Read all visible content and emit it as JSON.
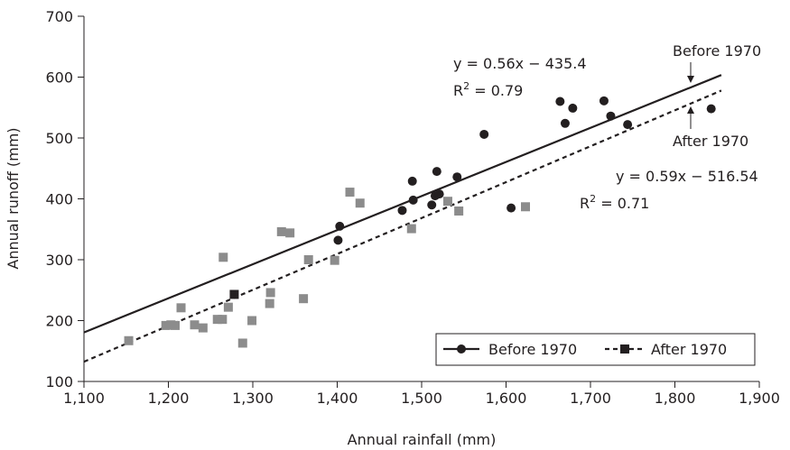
{
  "chart_data": {
    "type": "scatter",
    "xlabel": "Annual rainfall (mm)",
    "ylabel": "Annual runoff (mm)",
    "xlim": [
      1100,
      1900
    ],
    "ylim": [
      100,
      700
    ],
    "x_ticks": [
      1100,
      1200,
      1300,
      1400,
      1500,
      1600,
      1700,
      1800,
      1900
    ],
    "x_tick_labels": [
      "1,100",
      "1,200",
      "1,300",
      "1,400",
      "1,500",
      "1,600",
      "1,700",
      "1,800",
      "1,900"
    ],
    "y_ticks": [
      100,
      200,
      300,
      400,
      500,
      600,
      700
    ],
    "y_tick_labels": [
      "100",
      "200",
      "300",
      "400",
      "500",
      "600",
      "700"
    ],
    "grid": false,
    "legend_position": "bottom-right",
    "series": [
      {
        "name": "Before 1970",
        "marker": "circle",
        "line_style": "solid",
        "color": "#231f20",
        "trend": {
          "slope": 0.56,
          "intercept": -435.4,
          "x_range": [
            1100,
            1855
          ]
        },
        "points": [
          [
            1401,
            332
          ],
          [
            1403,
            355
          ],
          [
            1477,
            381
          ],
          [
            1489,
            429
          ],
          [
            1490,
            398
          ],
          [
            1512,
            390
          ],
          [
            1516,
            405
          ],
          [
            1518,
            445
          ],
          [
            1521,
            408
          ],
          [
            1542,
            436
          ],
          [
            1574,
            506
          ],
          [
            1606,
            385
          ],
          [
            1664,
            560
          ],
          [
            1670,
            524
          ],
          [
            1679,
            549
          ],
          [
            1716,
            561
          ],
          [
            1724,
            536
          ],
          [
            1744,
            522
          ],
          [
            1843,
            548
          ]
        ]
      },
      {
        "name": "After 1970",
        "marker": "square",
        "line_style": "dashed",
        "color": "#8c8c8c",
        "highlight_color": "#231f20",
        "trend": {
          "slope": 0.59,
          "intercept": -516.54,
          "x_range": [
            1100,
            1855
          ]
        },
        "points": [
          [
            1153,
            167
          ],
          [
            1197,
            192
          ],
          [
            1203,
            193
          ],
          [
            1208,
            192
          ],
          [
            1215,
            221
          ],
          [
            1231,
            193
          ],
          [
            1241,
            188
          ],
          [
            1258,
            202
          ],
          [
            1264,
            202
          ],
          [
            1265,
            304
          ],
          [
            1271,
            222
          ],
          [
            1278,
            243
          ],
          [
            1288,
            163
          ],
          [
            1299,
            200
          ],
          [
            1320,
            228
          ],
          [
            1321,
            246
          ],
          [
            1334,
            346
          ],
          [
            1344,
            344
          ],
          [
            1360,
            236
          ],
          [
            1366,
            300
          ],
          [
            1397,
            299
          ],
          [
            1415,
            411
          ],
          [
            1427,
            393
          ],
          [
            1488,
            351
          ],
          [
            1531,
            396
          ],
          [
            1544,
            380
          ],
          [
            1623,
            387
          ]
        ],
        "highlight_point_index": 11
      }
    ],
    "annotations": {
      "before_equation": "y = 0.56x − 435.4",
      "before_r2_prefix": "R",
      "before_r2_exp": "2",
      "before_r2_value": " = 0.79",
      "after_equation": "y = 0.59x − 516.54",
      "after_r2_prefix": "R",
      "after_r2_exp": "2",
      "after_r2_value": " = 0.71",
      "before_label": "Before 1970",
      "after_label": "After 1970"
    },
    "legend": {
      "before_label": "Before 1970",
      "after_label": "After 1970"
    }
  }
}
